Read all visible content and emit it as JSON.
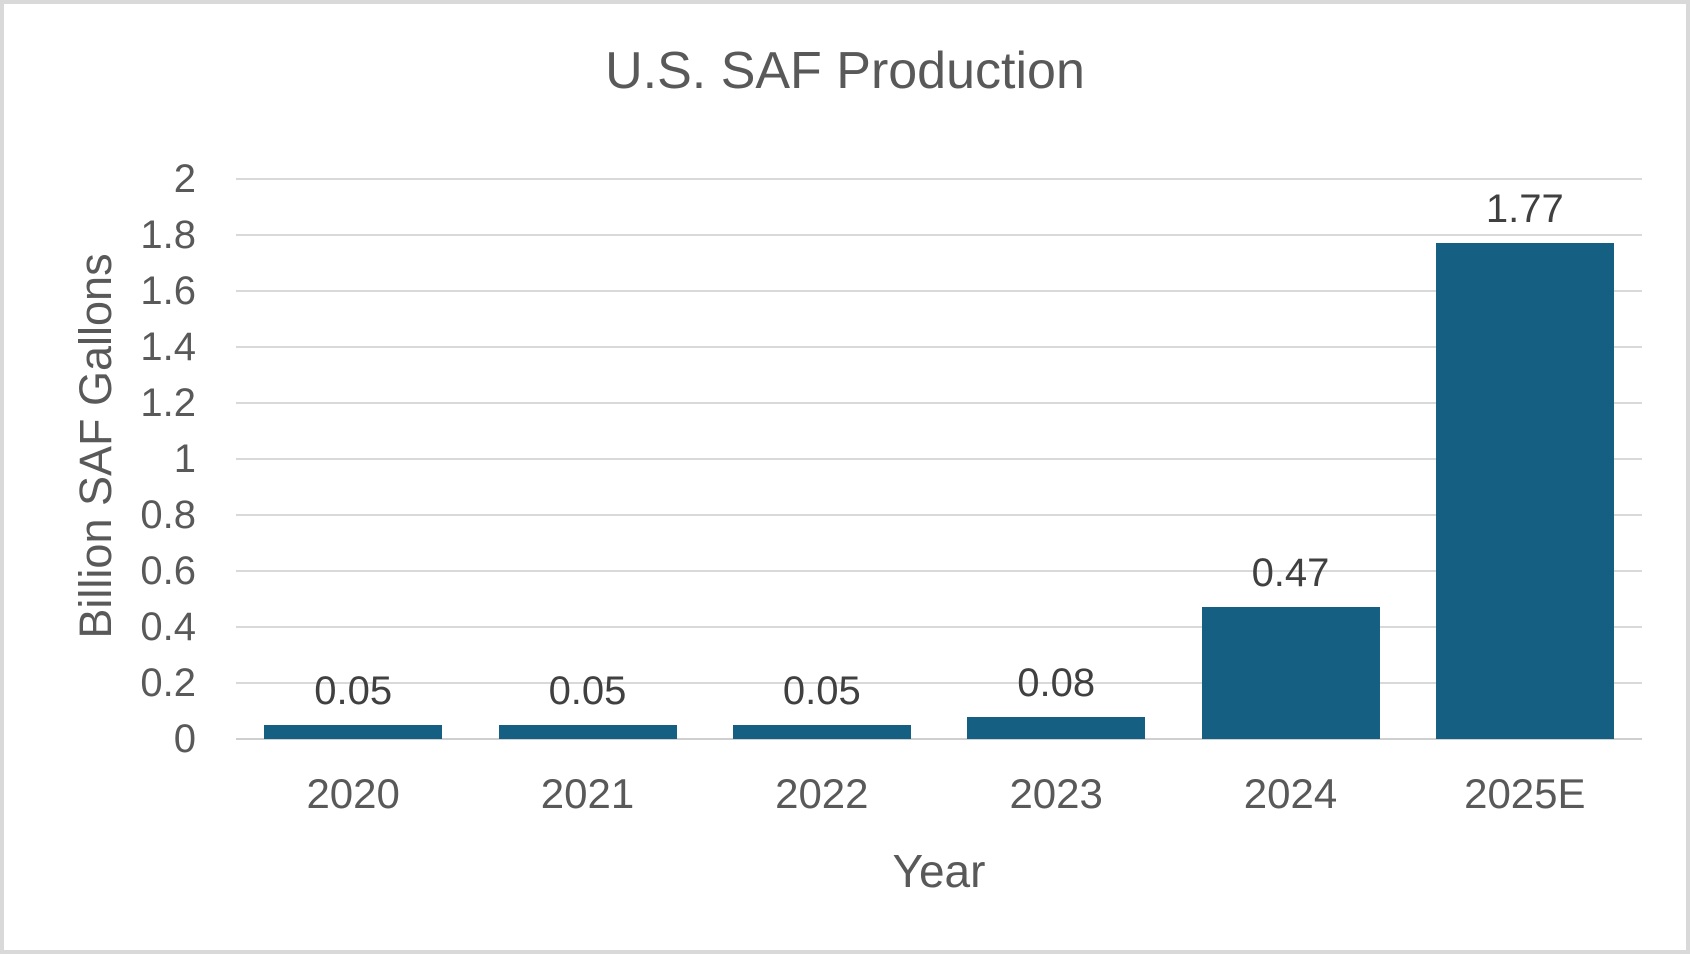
{
  "chart": {
    "title": "U.S. SAF Production",
    "y_axis_title": "Billion SAF Gallons",
    "x_axis_title": "Year"
  },
  "chart_data": {
    "type": "bar",
    "title": "U.S. SAF Production",
    "xlabel": "Year",
    "ylabel": "Billion SAF Gallons",
    "categories": [
      "2020",
      "2021",
      "2022",
      "2023",
      "2024",
      "2025E"
    ],
    "values": [
      0.05,
      0.05,
      0.05,
      0.08,
      0.47,
      1.77
    ],
    "data_labels": [
      "0.05",
      "0.05",
      "0.05",
      "0.08",
      "0.47",
      "1.77"
    ],
    "ylim": [
      0,
      2
    ],
    "ytick_interval": 0.2,
    "ytick_labels": [
      "0",
      "0.2",
      "0.4",
      "0.6",
      "0.8",
      "1",
      "1.2",
      "1.4",
      "1.6",
      "1.8",
      "2"
    ],
    "grid": true,
    "legend": false,
    "colors": {
      "bar": "#156082",
      "gridline": "#d9d9d9",
      "axis_line": "#cfcfcf",
      "axis_text": "#595959",
      "data_label_text": "#404040",
      "title_text": "#595959",
      "background": "#ffffff",
      "border": "#d9d9d9"
    }
  }
}
